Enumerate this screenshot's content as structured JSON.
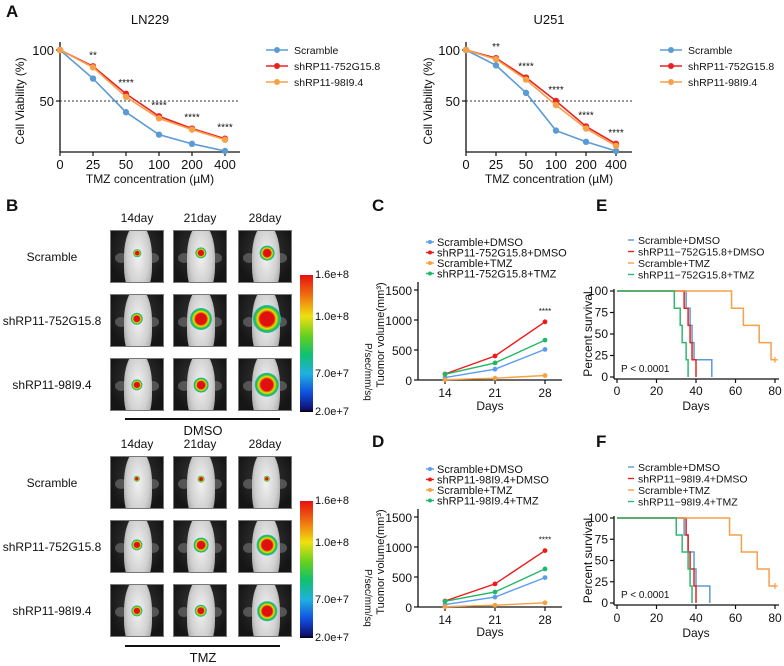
{
  "panel_labels": {
    "a": "A",
    "b": "B",
    "c": "C",
    "d": "D",
    "e": "E",
    "f": "F"
  },
  "panel_b": {
    "day_headers": [
      "14day",
      "21day",
      "28day"
    ],
    "row_labels": [
      "Scramble",
      "shRP11-752G15.8",
      "shRP11-98I9.4"
    ],
    "colorbar_labels": [
      "1.6e+8",
      "1.0e+8",
      "7.0e+7",
      "2.0e+7"
    ],
    "colorbar_unit": "P/sec/mm/sq",
    "groups": [
      {
        "label": "DMSO",
        "signal_intensity": [
          [
            0.15,
            0.3,
            0.45
          ],
          [
            0.35,
            0.75,
            1.0
          ],
          [
            0.3,
            0.45,
            0.85
          ]
        ]
      },
      {
        "label": "TMZ",
        "signal_intensity": [
          [
            0.1,
            0.12,
            0.1
          ],
          [
            0.3,
            0.45,
            0.7
          ],
          [
            0.3,
            0.35,
            0.65
          ]
        ]
      }
    ]
  },
  "chart_data": [
    {
      "id": "A1",
      "type": "line",
      "title": "LN229",
      "xlabel": "TMZ concentration (µM)",
      "ylabel": "Cell Viability (%)",
      "categories": [
        "0",
        "25",
        "50",
        "100",
        "200",
        "400"
      ],
      "ylim": [
        0,
        100
      ],
      "yticks": [
        "50",
        "100"
      ],
      "reference_line": 50,
      "legend": "right",
      "significance": [
        "",
        "**",
        "****",
        "****",
        "****",
        "****"
      ],
      "series": [
        {
          "name": "Scramble",
          "color": "#5b9bd5",
          "values": [
            100,
            72,
            39,
            17,
            8,
            1
          ]
        },
        {
          "name": "shRP11-752G15.8",
          "color": "#e8231f",
          "values": [
            100,
            84,
            57,
            35,
            23,
            13
          ]
        },
        {
          "name": "shRP11-98I9.4",
          "color": "#f7a04a",
          "values": [
            100,
            83,
            54,
            33,
            22,
            12
          ]
        }
      ]
    },
    {
      "id": "A2",
      "type": "line",
      "title": "U251",
      "xlabel": "TMZ concentration (µM)",
      "ylabel": "Cell Viability (%)",
      "categories": [
        "0",
        "25",
        "50",
        "100",
        "200",
        "400"
      ],
      "ylim": [
        0,
        100
      ],
      "yticks": [
        "50",
        "100"
      ],
      "reference_line": 50,
      "legend": "right",
      "significance": [
        "",
        "**",
        "****",
        "****",
        "****",
        "****"
      ],
      "series": [
        {
          "name": "Scramble",
          "color": "#5b9bd5",
          "values": [
            100,
            85,
            58,
            21,
            10,
            1
          ]
        },
        {
          "name": "shRP11-752G15.8",
          "color": "#e8231f",
          "values": [
            100,
            92,
            73,
            50,
            25,
            8
          ]
        },
        {
          "name": "shRP11-98I9.4",
          "color": "#f7a04a",
          "values": [
            100,
            91,
            71,
            46,
            23,
            6
          ]
        }
      ]
    },
    {
      "id": "C",
      "type": "line",
      "title": "",
      "xlabel": "Days",
      "ylabel": "Tuomor volume(mm³)",
      "categories": [
        "14",
        "21",
        "28"
      ],
      "ylim": [
        0,
        1500
      ],
      "yticks": [
        "0",
        "500",
        "1000",
        "1500"
      ],
      "legend": "top",
      "significance": [
        "",
        "",
        "****"
      ],
      "series": [
        {
          "name": "Scramble+DMSO",
          "color": "#5b9bf0",
          "values": [
            40,
            180,
            510
          ]
        },
        {
          "name": "shRP11-752G15.8+DMSO",
          "color": "#f01818",
          "values": [
            100,
            400,
            970
          ]
        },
        {
          "name": "Scramble+TMZ",
          "color": "#f8a040",
          "values": [
            5,
            30,
            75
          ]
        },
        {
          "name": "shRP11-752G15.8+TMZ",
          "color": "#20b868",
          "values": [
            95,
            285,
            665
          ]
        }
      ]
    },
    {
      "id": "D",
      "type": "line",
      "title": "",
      "xlabel": "Days",
      "ylabel": "Tuomor volume(mm³)",
      "categories": [
        "14",
        "21",
        "28"
      ],
      "ylim": [
        0,
        1500
      ],
      "yticks": [
        "0",
        "500",
        "1000",
        "1500"
      ],
      "legend": "top",
      "significance": [
        "",
        "",
        "****"
      ],
      "series": [
        {
          "name": "Scramble+DMSO",
          "color": "#5b9bf0",
          "values": [
            40,
            165,
            490
          ]
        },
        {
          "name": "shRP11-98I9.4+DMSO",
          "color": "#f01818",
          "values": [
            100,
            385,
            940
          ]
        },
        {
          "name": "Scramble+TMZ",
          "color": "#f8a040",
          "values": [
            5,
            30,
            70
          ]
        },
        {
          "name": "shRP11-98I9.4+TMZ",
          "color": "#20b868",
          "values": [
            95,
            250,
            635
          ]
        }
      ]
    },
    {
      "id": "E",
      "type": "survival",
      "xlabel": "Days",
      "ylabel": "Percent survival",
      "xlim": [
        0,
        80
      ],
      "ylim": [
        0,
        100
      ],
      "xticks": [
        "0",
        "20",
        "40",
        "60",
        "80"
      ],
      "yticks": [
        "0",
        "25",
        "50",
        "75",
        "100"
      ],
      "pvalue": "P < 0.0001",
      "legend": "top",
      "series": [
        {
          "name": "Scramble+DMSO",
          "color": "#5b9bd5",
          "steps": [
            [
              0,
              100
            ],
            [
              35,
              80
            ],
            [
              37,
              60
            ],
            [
              38,
              40
            ],
            [
              39,
              20
            ],
            [
              48,
              0
            ]
          ]
        },
        {
          "name": "shRP11−752G15.8+DMSO",
          "color": "#e8231f",
          "steps": [
            [
              0,
              100
            ],
            [
              34,
              80
            ],
            [
              36,
              60
            ],
            [
              37,
              40
            ],
            [
              38,
              20
            ],
            [
              40,
              0
            ]
          ]
        },
        {
          "name": "Scramble+TMZ",
          "color": "#f7a04a",
          "steps": [
            [
              0,
              100
            ],
            [
              58,
              80
            ],
            [
              64,
              60
            ],
            [
              72,
              40
            ],
            [
              78,
              20
            ],
            [
              80,
              20
            ]
          ],
          "censored_at": 80
        },
        {
          "name": "shRP11−752G15.8+TMZ",
          "color": "#2fb872",
          "steps": [
            [
              0,
              100
            ],
            [
              29,
              80
            ],
            [
              32,
              60
            ],
            [
              33,
              40
            ],
            [
              35,
              20
            ],
            [
              36,
              0
            ]
          ]
        }
      ]
    },
    {
      "id": "F",
      "type": "survival",
      "xlabel": "Days",
      "ylabel": "Percent survival",
      "xlim": [
        0,
        80
      ],
      "ylim": [
        0,
        100
      ],
      "xticks": [
        "0",
        "20",
        "40",
        "60",
        "80"
      ],
      "yticks": [
        "0",
        "25",
        "50",
        "75",
        "100"
      ],
      "pvalue": "P < 0.0001",
      "legend": "top",
      "series": [
        {
          "name": "Scramble+DMSO",
          "color": "#5b9bd5",
          "steps": [
            [
              0,
              100
            ],
            [
              34,
              80
            ],
            [
              36,
              60
            ],
            [
              39,
              40
            ],
            [
              40,
              20
            ],
            [
              47,
              0
            ]
          ]
        },
        {
          "name": "shRP11−98I9.4+DMSO",
          "color": "#e8231f",
          "steps": [
            [
              0,
              100
            ],
            [
              35,
              80
            ],
            [
              36,
              60
            ],
            [
              37,
              40
            ],
            [
              39,
              20
            ],
            [
              40,
              0
            ]
          ]
        },
        {
          "name": "Scramble+TMZ",
          "color": "#f7a04a",
          "steps": [
            [
              0,
              100
            ],
            [
              57,
              80
            ],
            [
              63,
              60
            ],
            [
              71,
              40
            ],
            [
              77,
              20
            ],
            [
              80,
              20
            ]
          ],
          "censored_at": 80
        },
        {
          "name": "shRP11−98I9.4+TMZ",
          "color": "#2fb872",
          "steps": [
            [
              0,
              100
            ],
            [
              30,
              80
            ],
            [
              33,
              60
            ],
            [
              36,
              40
            ],
            [
              37,
              20
            ],
            [
              38,
              0
            ]
          ]
        }
      ]
    }
  ]
}
